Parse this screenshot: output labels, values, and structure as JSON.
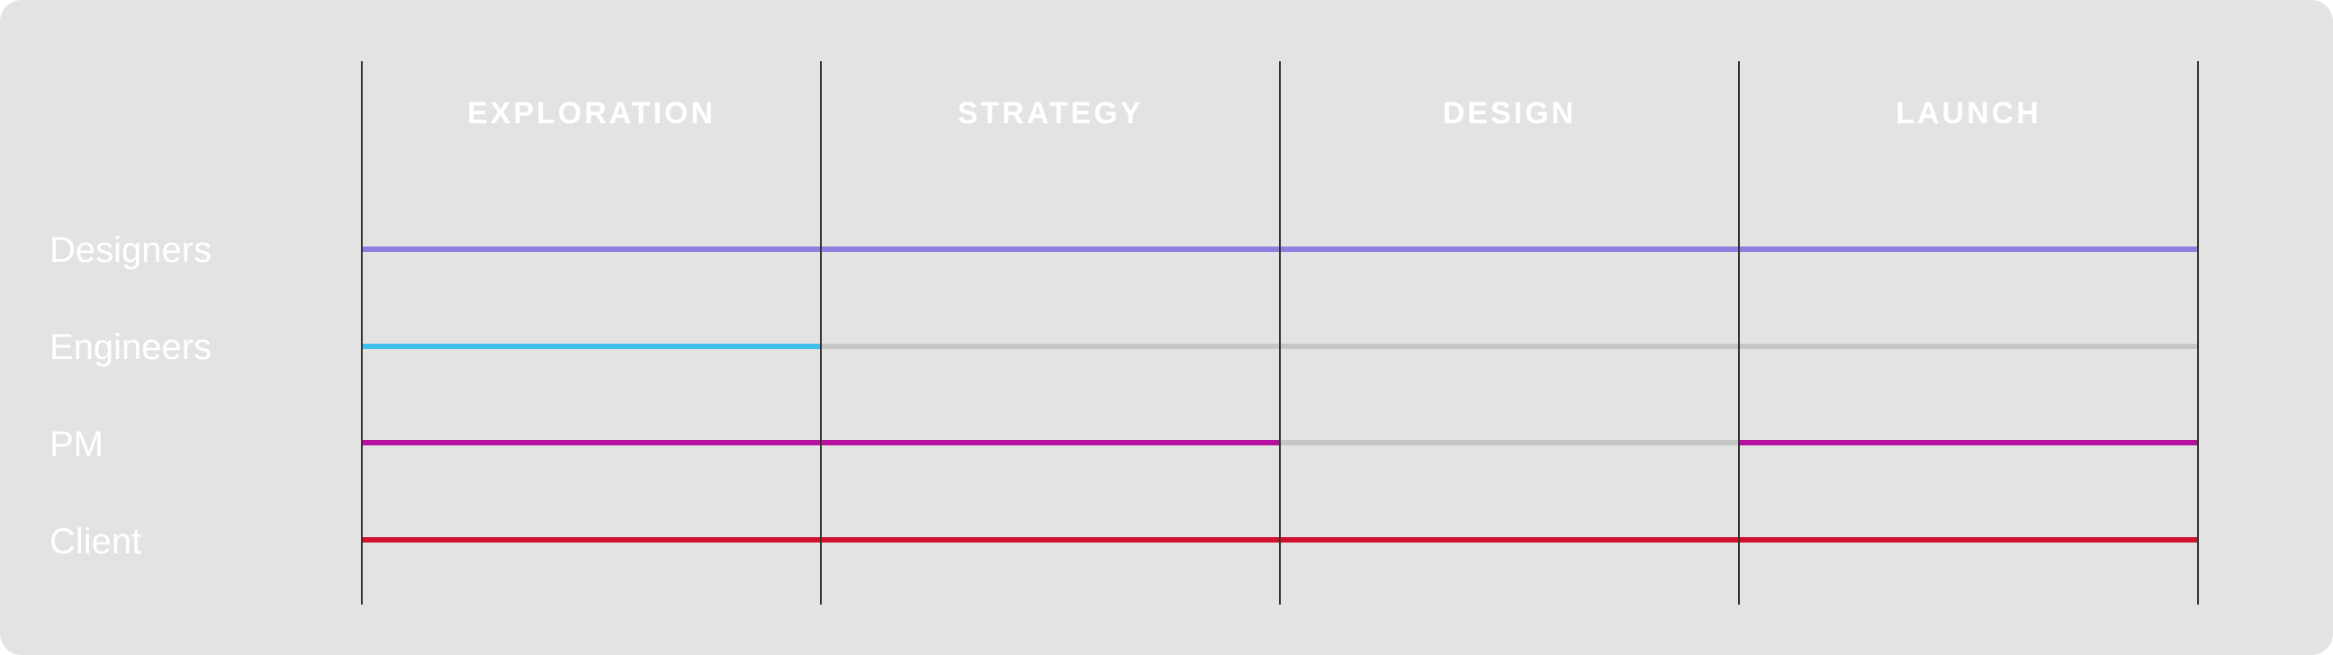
{
  "phases": [
    "EXPLORATION",
    "STRATEGY",
    "DESIGN",
    "LAUNCH"
  ],
  "roles": [
    {
      "label": "Designers",
      "key": "designers"
    },
    {
      "label": "Engineers",
      "key": "engineers"
    },
    {
      "label": "PM",
      "key": "pm"
    },
    {
      "label": "Client",
      "key": "client"
    }
  ],
  "colors": {
    "background": "#e3e3e3",
    "inactive": "#c6c6c6",
    "designers": "#8c7fe0",
    "engineers": "#3fbfeb",
    "pm": "#b5119e",
    "client": "#d0102f",
    "divider": "#333333",
    "text": "#ffffff"
  },
  "involvement": {
    "designers": [
      true,
      true,
      true,
      true
    ],
    "engineers": [
      true,
      false,
      false,
      false
    ],
    "pm": [
      true,
      true,
      false,
      true
    ],
    "client": [
      true,
      true,
      true,
      true
    ]
  }
}
